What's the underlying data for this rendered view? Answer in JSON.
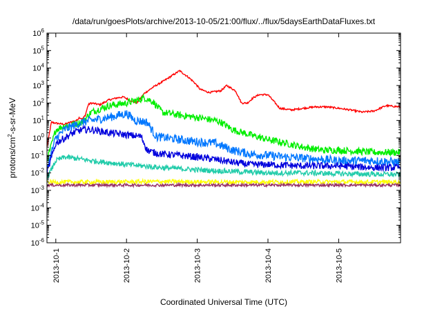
{
  "chart_data": {
    "type": "line",
    "title": "/data/run/goesPlots/archive/2013-10-05/21:00/flux/../flux/5daysEarthDataFluxes.txt",
    "xlabel": "Coordinated Universal Time (UTC)",
    "ylabel_prefix": "protons/cm",
    "ylabel_sup": "2",
    "ylabel_suffix": "-s-sr-MeV",
    "y_scale": "log",
    "ylim": [
      1e-06,
      1000000.0
    ],
    "xlim": [
      "2013-09-30T21:00",
      "2013-10-05T21:00"
    ],
    "grid": false,
    "legend": "none",
    "x_ticks": [
      {
        "label": "2013-10-1",
        "x": "2013-10-01T00:00"
      },
      {
        "label": "2013-10-2",
        "x": "2013-10-02T00:00"
      },
      {
        "label": "2013-10-3",
        "x": "2013-10-03T00:00"
      },
      {
        "label": "2013-10-4",
        "x": "2013-10-04T00:00"
      },
      {
        "label": "2013-10-5",
        "x": "2013-10-05T00:00"
      }
    ],
    "y_ticks": [
      {
        "base": "10",
        "exp": "-6",
        "value": 1e-06
      },
      {
        "base": "10",
        "exp": "-5",
        "value": 1e-05
      },
      {
        "base": "10",
        "exp": "-4",
        "value": 0.0001
      },
      {
        "base": "10",
        "exp": "-3",
        "value": 0.001
      },
      {
        "base": "10",
        "exp": "-2",
        "value": 0.01
      },
      {
        "base": "10",
        "exp": "-1",
        "value": 0.1
      },
      {
        "base": "10",
        "exp": "0",
        "value": 1
      },
      {
        "base": "10",
        "exp": "1",
        "value": 10
      },
      {
        "base": "10",
        "exp": "2",
        "value": 100
      },
      {
        "base": "10",
        "exp": "3",
        "value": 1000
      },
      {
        "base": "10",
        "exp": "4",
        "value": 10000
      },
      {
        "base": "10",
        "exp": "5",
        "value": 100000
      },
      {
        "base": "10",
        "exp": "6",
        "value": 1000000
      }
    ],
    "series": [
      {
        "color": "#ff0000",
        "noise": 0.05,
        "x": [
          "2013-09-30T21:00",
          "2013-09-30T22:30",
          "2013-10-01T00:00",
          "2013-10-01T03:00",
          "2013-10-01T05:00",
          "2013-10-01T07:00",
          "2013-10-01T08:00",
          "2013-10-01T09:00",
          "2013-10-01T10:00",
          "2013-10-01T11:00",
          "2013-10-01T12:00",
          "2013-10-01T15:00",
          "2013-10-01T18:00",
          "2013-10-01T21:00",
          "2013-10-01T23:00",
          "2013-10-02T02:00",
          "2013-10-02T03:30",
          "2013-10-02T06:00",
          "2013-10-02T09:00",
          "2013-10-02T13:00",
          "2013-10-02T18:00",
          "2013-10-02T21:00",
          "2013-10-02T23:00",
          "2013-10-03T01:00",
          "2013-10-03T04:00",
          "2013-10-03T08:00",
          "2013-10-03T10:00",
          "2013-10-03T13:00",
          "2013-10-03T15:00",
          "2013-10-03T17:00",
          "2013-10-03T19:00",
          "2013-10-03T21:00",
          "2013-10-04T00:00",
          "2013-10-04T04:00",
          "2013-10-04T08:00",
          "2013-10-04T12:00",
          "2013-10-04T16:00",
          "2013-10-04T20:00",
          "2013-10-05T00:00",
          "2013-10-05T04:00",
          "2013-10-05T08:00",
          "2013-10-05T12:00",
          "2013-10-05T16:00",
          "2013-10-05T21:00"
        ],
        "y": [
          0.3,
          8,
          7,
          6,
          8,
          10,
          15,
          12,
          20,
          80,
          100,
          80,
          150,
          200,
          220,
          120,
          100,
          350,
          800,
          2000,
          7000,
          3000,
          1500,
          600,
          400,
          500,
          1000,
          500,
          100,
          100,
          200,
          300,
          300,
          50,
          40,
          50,
          60,
          60,
          50,
          40,
          30,
          35,
          70,
          60
        ]
      },
      {
        "color": "#00ee00",
        "noise": 0.2,
        "x": [
          "2013-09-30T21:00",
          "2013-10-01T00:00",
          "2013-10-01T03:00",
          "2013-10-01T06:00",
          "2013-10-01T09:00",
          "2013-10-01T12:00",
          "2013-10-01T18:00",
          "2013-10-02T00:00",
          "2013-10-02T04:00",
          "2013-10-02T06:00",
          "2013-10-02T09:00",
          "2013-10-02T12:00",
          "2013-10-02T18:00",
          "2013-10-03T00:00",
          "2013-10-03T06:00",
          "2013-10-03T08:00",
          "2013-10-03T12:00",
          "2013-10-03T18:00",
          "2013-10-04T00:00",
          "2013-10-04T06:00",
          "2013-10-04T12:00",
          "2013-10-04T18:00",
          "2013-10-05T00:00",
          "2013-10-05T12:00",
          "2013-10-05T21:00"
        ],
        "y": [
          0.05,
          3,
          5,
          6,
          8,
          30,
          70,
          100,
          150,
          200,
          120,
          30,
          20,
          15,
          10,
          8,
          3,
          1.5,
          0.8,
          0.5,
          0.3,
          0.2,
          0.2,
          0.15,
          0.15
        ]
      },
      {
        "color": "#0077ff",
        "noise": 0.25,
        "x": [
          "2013-09-30T21:00",
          "2013-10-01T00:00",
          "2013-10-01T03:00",
          "2013-10-01T06:00",
          "2013-10-01T09:00",
          "2013-10-01T12:00",
          "2013-10-01T18:00",
          "2013-10-02T00:00",
          "2013-10-02T03:00",
          "2013-10-02T07:00",
          "2013-10-02T10:00",
          "2013-10-02T18:00",
          "2013-10-03T00:00",
          "2013-10-03T06:00",
          "2013-10-03T12:00",
          "2013-10-03T18:00",
          "2013-10-04T00:00",
          "2013-10-04T06:00",
          "2013-10-04T12:00",
          "2013-10-04T18:00",
          "2013-10-05T00:00",
          "2013-10-05T12:00",
          "2013-10-05T21:00"
        ],
        "y": [
          0.02,
          1,
          3,
          5,
          8,
          10,
          15,
          25,
          10,
          8,
          1.2,
          0.8,
          0.6,
          0.5,
          0.2,
          0.12,
          0.1,
          0.08,
          0.07,
          0.06,
          0.05,
          0.05,
          0.04
        ]
      },
      {
        "color": "#0000dd",
        "noise": 0.2,
        "x": [
          "2013-09-30T21:00",
          "2013-10-01T00:00",
          "2013-10-01T03:00",
          "2013-10-01T06:00",
          "2013-10-01T09:00",
          "2013-10-01T12:00",
          "2013-10-01T18:00",
          "2013-10-02T00:00",
          "2013-10-02T05:00",
          "2013-10-02T07:00",
          "2013-10-02T09:00",
          "2013-10-02T12:00",
          "2013-10-02T18:00",
          "2013-10-03T00:00",
          "2013-10-03T06:00",
          "2013-10-03T12:00",
          "2013-10-03T18:00",
          "2013-10-04T00:00",
          "2013-10-04T12:00",
          "2013-10-05T00:00",
          "2013-10-05T12:00",
          "2013-10-05T21:00"
        ],
        "y": [
          0.01,
          0.5,
          1,
          2,
          3,
          3,
          2,
          1.5,
          1.2,
          0.2,
          0.15,
          0.12,
          0.1,
          0.08,
          0.06,
          0.04,
          0.03,
          0.03,
          0.025,
          0.025,
          0.02,
          0.02
        ]
      },
      {
        "color": "#22ccaa",
        "noise": 0.15,
        "x": [
          "2013-09-30T21:00",
          "2013-10-01T00:00",
          "2013-10-01T03:00",
          "2013-10-01T06:00",
          "2013-10-01T12:00",
          "2013-10-02T00:00",
          "2013-10-02T12:00",
          "2013-10-03T00:00",
          "2013-10-03T12:00",
          "2013-10-04T00:00",
          "2013-10-04T12:00",
          "2013-10-05T00:00",
          "2013-10-05T21:00"
        ],
        "y": [
          0.005,
          0.05,
          0.08,
          0.07,
          0.05,
          0.03,
          0.02,
          0.015,
          0.012,
          0.01,
          0.01,
          0.009,
          0.008
        ]
      },
      {
        "color": "#ffff00",
        "noise": 0.12,
        "x": [
          "2013-09-30T21:00",
          "2013-10-01T12:00",
          "2013-10-02T12:00",
          "2013-10-03T12:00",
          "2013-10-04T12:00",
          "2013-10-05T21:00"
        ],
        "y": [
          0.003,
          0.003,
          0.0032,
          0.003,
          0.0031,
          0.003
        ]
      },
      {
        "color": "#993366",
        "noise": 0.08,
        "x": [
          "2013-09-30T21:00",
          "2013-10-02T00:00",
          "2013-10-03T00:00",
          "2013-10-04T00:00",
          "2013-10-05T21:00"
        ],
        "y": [
          0.002,
          0.002,
          0.002,
          0.002,
          0.002
        ]
      }
    ]
  }
}
